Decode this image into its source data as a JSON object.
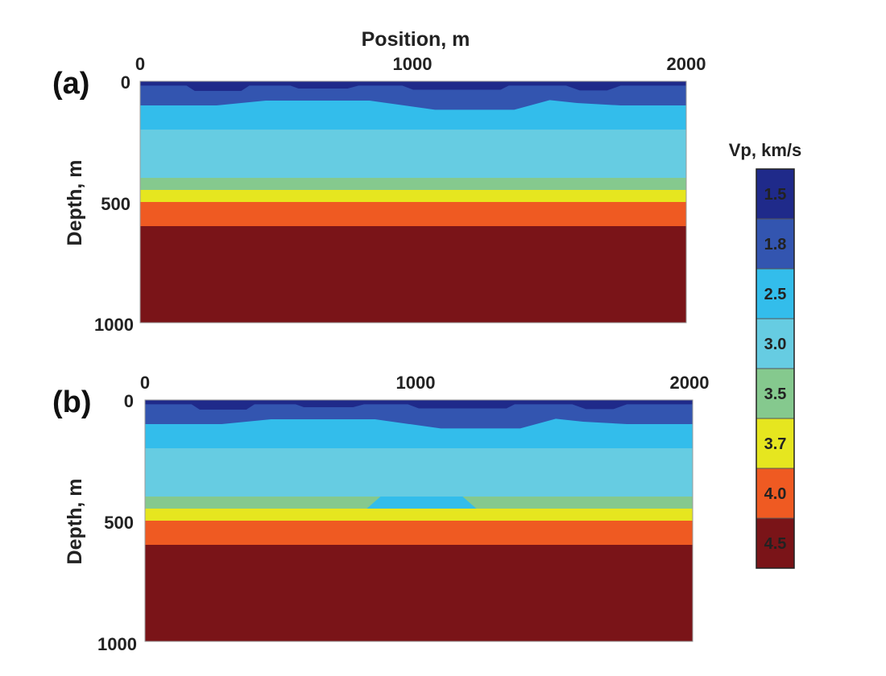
{
  "chart_data": {
    "type": "heatmap",
    "xlabel": "Position, m",
    "ylabel": "Depth, m",
    "xlim": [
      0,
      2000
    ],
    "ylim": [
      0,
      1000
    ],
    "y_inverted": true,
    "x_ticks": [
      "0",
      "1000",
      "2000"
    ],
    "y_ticks": [
      "0",
      "500",
      "1000"
    ],
    "colorbar": {
      "title": "Vp, km/s",
      "units": "km/s",
      "levels": [
        {
          "label": "1.5",
          "value": 1.5,
          "color": "#1f2a8a"
        },
        {
          "label": "1.8",
          "value": 1.8,
          "color": "#3355b0"
        },
        {
          "label": "2.5",
          "value": 2.5,
          "color": "#33bdeb"
        },
        {
          "label": "3.0",
          "value": 3.0,
          "color": "#66cce2"
        },
        {
          "label": "3.5",
          "value": 3.5,
          "color": "#85c98e"
        },
        {
          "label": "3.7",
          "value": 3.7,
          "color": "#e6e61f"
        },
        {
          "label": "4.0",
          "value": 4.0,
          "color": "#ef5a22"
        },
        {
          "label": "4.5",
          "value": 4.5,
          "color": "#7a1418"
        }
      ]
    },
    "panels": [
      {
        "label": "(a)",
        "layers": [
          {
            "vp": 1.5,
            "top": [
              [
                0,
                0
              ],
              [
                2000,
                0
              ]
            ]
          },
          {
            "vp": 1.8,
            "top": [
              [
                0,
                18
              ],
              [
                170,
                18
              ],
              [
                200,
                40
              ],
              [
                370,
                40
              ],
              [
                400,
                18
              ],
              [
                550,
                18
              ],
              [
                580,
                30
              ],
              [
                760,
                30
              ],
              [
                800,
                18
              ],
              [
                960,
                18
              ],
              [
                1000,
                35
              ],
              [
                1320,
                35
              ],
              [
                1350,
                18
              ],
              [
                1560,
                18
              ],
              [
                1610,
                38
              ],
              [
                1710,
                38
              ],
              [
                1760,
                18
              ],
              [
                2000,
                18
              ]
            ]
          },
          {
            "vp": 2.5,
            "top": [
              [
                0,
                100
              ],
              [
                280,
                100
              ],
              [
                460,
                80
              ],
              [
                840,
                80
              ],
              [
                1080,
                118
              ],
              [
                1370,
                118
              ],
              [
                1500,
                78
              ],
              [
                1600,
                90
              ],
              [
                1760,
                100
              ],
              [
                2000,
                100
              ]
            ]
          },
          {
            "vp": 3.0,
            "top": [
              [
                0,
                200
              ],
              [
                2000,
                200
              ]
            ]
          },
          {
            "vp": 3.5,
            "top": [
              [
                0,
                400
              ],
              [
                2000,
                400
              ]
            ]
          },
          {
            "vp": 3.7,
            "top": [
              [
                0,
                450
              ],
              [
                2000,
                450
              ]
            ]
          },
          {
            "vp": 4.0,
            "top": [
              [
                0,
                500
              ],
              [
                2000,
                500
              ]
            ]
          },
          {
            "vp": 4.5,
            "top": [
              [
                0,
                600
              ],
              [
                2000,
                600
              ]
            ]
          }
        ],
        "anomaly": null
      },
      {
        "label": "(b)",
        "layers": [
          {
            "vp": 1.5,
            "top": [
              [
                0,
                0
              ],
              [
                2000,
                0
              ]
            ]
          },
          {
            "vp": 1.8,
            "top": [
              [
                0,
                18
              ],
              [
                170,
                18
              ],
              [
                200,
                40
              ],
              [
                370,
                40
              ],
              [
                400,
                18
              ],
              [
                550,
                18
              ],
              [
                580,
                30
              ],
              [
                760,
                30
              ],
              [
                800,
                18
              ],
              [
                960,
                18
              ],
              [
                1000,
                35
              ],
              [
                1320,
                35
              ],
              [
                1350,
                18
              ],
              [
                1560,
                18
              ],
              [
                1610,
                38
              ],
              [
                1710,
                38
              ],
              [
                1760,
                18
              ],
              [
                2000,
                18
              ]
            ]
          },
          {
            "vp": 2.5,
            "top": [
              [
                0,
                100
              ],
              [
                280,
                100
              ],
              [
                460,
                80
              ],
              [
                840,
                80
              ],
              [
                1080,
                118
              ],
              [
                1370,
                118
              ],
              [
                1500,
                78
              ],
              [
                1600,
                90
              ],
              [
                1760,
                100
              ],
              [
                2000,
                100
              ]
            ]
          },
          {
            "vp": 3.0,
            "top": [
              [
                0,
                200
              ],
              [
                2000,
                200
              ]
            ]
          },
          {
            "vp": 3.5,
            "top": [
              [
                0,
                400
              ],
              [
                2000,
                400
              ]
            ]
          },
          {
            "vp": 3.7,
            "top": [
              [
                0,
                450
              ],
              [
                2000,
                450
              ]
            ]
          },
          {
            "vp": 4.0,
            "top": [
              [
                0,
                500
              ],
              [
                2000,
                500
              ]
            ]
          },
          {
            "vp": 4.5,
            "top": [
              [
                0,
                600
              ],
              [
                2000,
                600
              ]
            ]
          }
        ],
        "anomaly": {
          "vp": 2.5,
          "polygon": [
            [
              810,
              450
            ],
            [
              860,
              400
            ],
            [
              1160,
              400
            ],
            [
              1210,
              450
            ]
          ]
        }
      }
    ]
  }
}
